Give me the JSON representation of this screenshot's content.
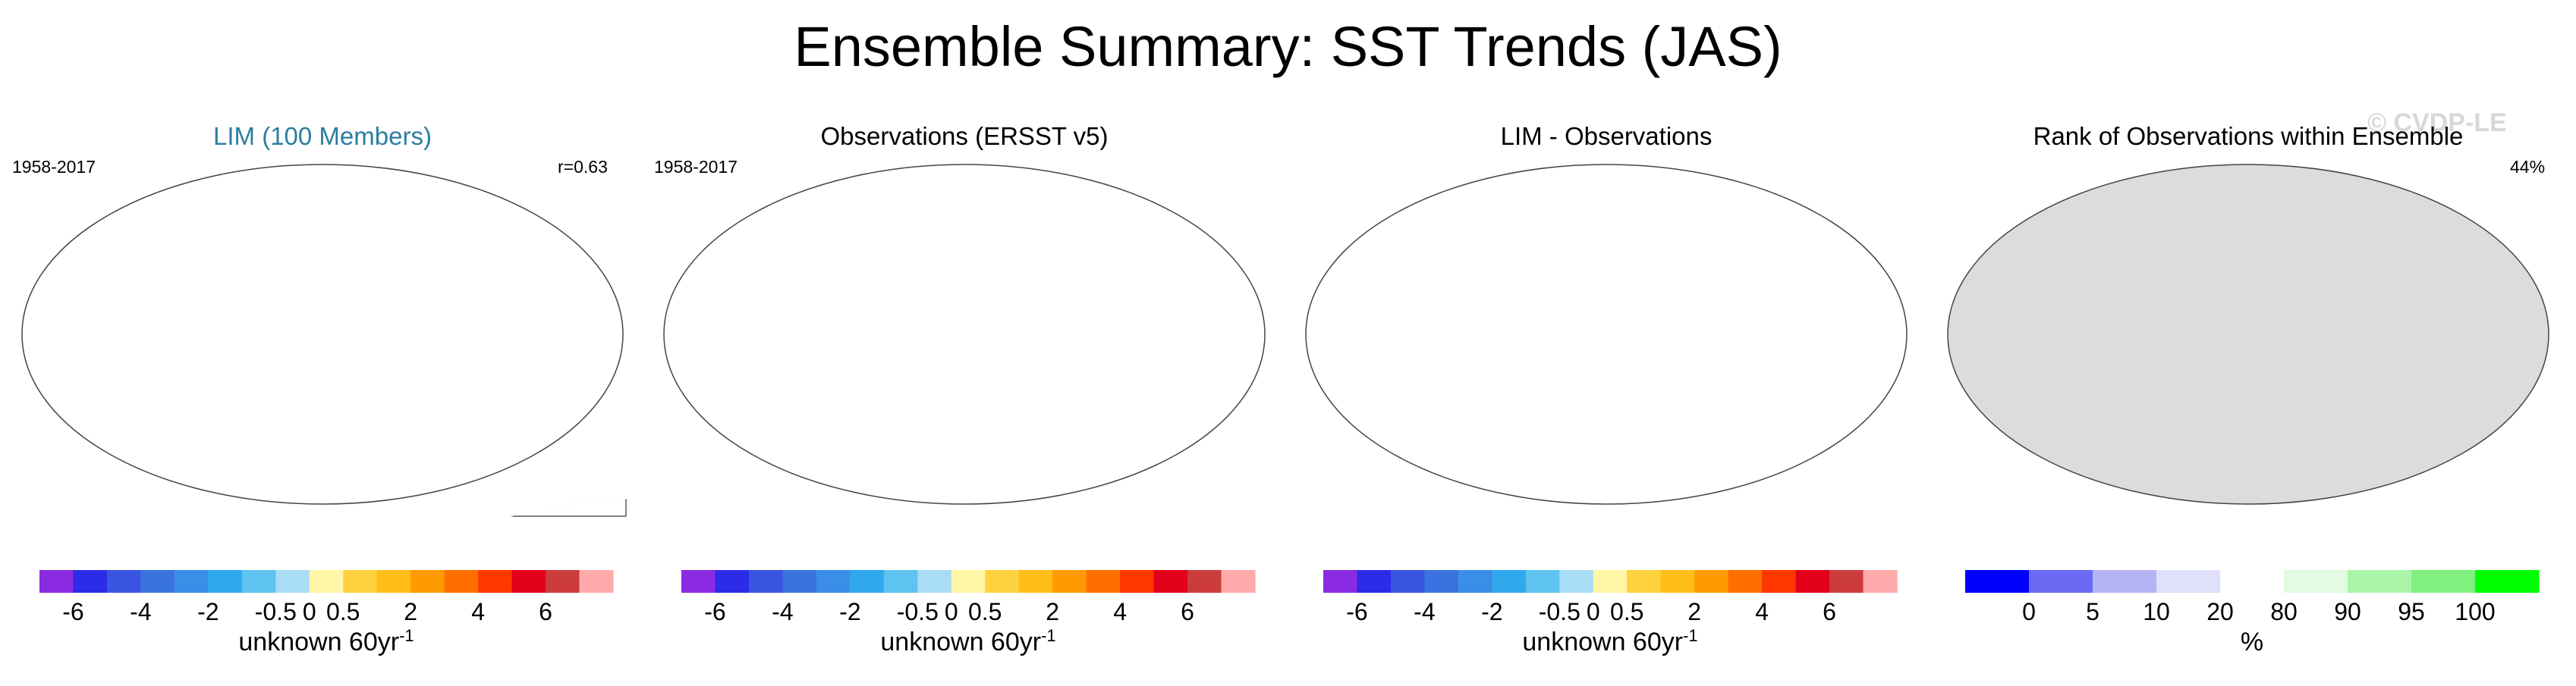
{
  "title": "Ensemble Summary: SST Trends (JAS)",
  "watermark": "© CVDP-LE",
  "panels": [
    {
      "title": "LIM (100 Members)",
      "title_color": "#2b7da0",
      "period": "1958-2017",
      "stat": "r=0.63"
    },
    {
      "title": "Observations (ERSST v5)",
      "title_color": "#000000",
      "period": "1958-2017",
      "stat": ""
    },
    {
      "title": "LIM - Observations",
      "title_color": "#000000",
      "period": "",
      "stat": ""
    },
    {
      "title": "Rank of Observations within Ensemble",
      "title_color": "#000000",
      "period": "",
      "stat": "44%"
    }
  ],
  "chart_data": [
    {
      "type": "heatmap",
      "title": "LIM (100 Members)",
      "subtitle_left": "1958-2017",
      "subtitle_right": "r=0.63",
      "units": "unknown 60yr",
      "units_superscript": "-1",
      "colorbar": {
        "bounds": [
          -7,
          -6,
          -5,
          -4,
          -3,
          -2,
          -1,
          -0.5,
          0,
          0.5,
          1,
          2,
          3,
          4,
          5,
          6,
          7
        ],
        "tick_labels": [
          "-6",
          "-4",
          "-2",
          "-0.5",
          "0",
          "0.5",
          "2",
          "4",
          "6"
        ],
        "tick_values": [
          -6,
          -4,
          -2,
          -0.5,
          0,
          0.5,
          2,
          4,
          6
        ],
        "colors": [
          "#8a2be2",
          "#2b2be8",
          "#3a55e0",
          "#3a73e0",
          "#3b8ee8",
          "#30a8ee",
          "#5ec3f0",
          "#a9dcf5",
          "#fff6a8",
          "#ffd23f",
          "#ffbd18",
          "#ff9a00",
          "#ff6f00",
          "#ff3800",
          "#e3001a",
          "#cc3c3c",
          "#ffaaaa"
        ]
      }
    },
    {
      "type": "heatmap",
      "title": "Observations (ERSST v5)",
      "subtitle_left": "1958-2017",
      "units": "unknown 60yr",
      "units_superscript": "-1",
      "colorbar": {
        "bounds": [
          -7,
          -6,
          -5,
          -4,
          -3,
          -2,
          -1,
          -0.5,
          0,
          0.5,
          1,
          2,
          3,
          4,
          5,
          6,
          7
        ],
        "tick_labels": [
          "-6",
          "-4",
          "-2",
          "-0.5",
          "0",
          "0.5",
          "2",
          "4",
          "6"
        ],
        "tick_values": [
          -6,
          -4,
          -2,
          -0.5,
          0,
          0.5,
          2,
          4,
          6
        ],
        "colors": [
          "#8a2be2",
          "#2b2be8",
          "#3a55e0",
          "#3a73e0",
          "#3b8ee8",
          "#30a8ee",
          "#5ec3f0",
          "#a9dcf5",
          "#fff6a8",
          "#ffd23f",
          "#ffbd18",
          "#ff9a00",
          "#ff6f00",
          "#ff3800",
          "#e3001a",
          "#cc3c3c",
          "#ffaaaa"
        ]
      }
    },
    {
      "type": "heatmap",
      "title": "LIM - Observations",
      "units": "unknown 60yr",
      "units_superscript": "-1",
      "colorbar": {
        "bounds": [
          -7,
          -6,
          -5,
          -4,
          -3,
          -2,
          -1,
          -0.5,
          0,
          0.5,
          1,
          2,
          3,
          4,
          5,
          6,
          7
        ],
        "tick_labels": [
          "-6",
          "-4",
          "-2",
          "-0.5",
          "0",
          "0.5",
          "2",
          "4",
          "6"
        ],
        "tick_values": [
          -6,
          -4,
          -2,
          -0.5,
          0,
          0.5,
          2,
          4,
          6
        ],
        "colors": [
          "#8a2be2",
          "#2b2be8",
          "#3a55e0",
          "#3a73e0",
          "#3b8ee8",
          "#30a8ee",
          "#5ec3f0",
          "#a9dcf5",
          "#fff6a8",
          "#ffd23f",
          "#ffbd18",
          "#ff9a00",
          "#ff6f00",
          "#ff3800",
          "#e3001a",
          "#cc3c3c",
          "#ffaaaa"
        ]
      }
    },
    {
      "type": "heatmap",
      "title": "Rank of Observations within Ensemble",
      "subtitle_right": "44%",
      "units": "%",
      "colorbar": {
        "bounds": [
          -5,
          0,
          5,
          10,
          20,
          80,
          90,
          95,
          100,
          105
        ],
        "tick_labels": [
          "0",
          "5",
          "10",
          "20",
          "80",
          "90",
          "95",
          "100"
        ],
        "tick_values": [
          0,
          5,
          10,
          20,
          80,
          90,
          95,
          100
        ],
        "colors": [
          "#0000ff",
          "#6a6af5",
          "#b4b4f5",
          "#e0e0fa",
          "#ffffff",
          "#e2fbe2",
          "#aaf5aa",
          "#80f080",
          "#00ff00"
        ]
      }
    }
  ]
}
